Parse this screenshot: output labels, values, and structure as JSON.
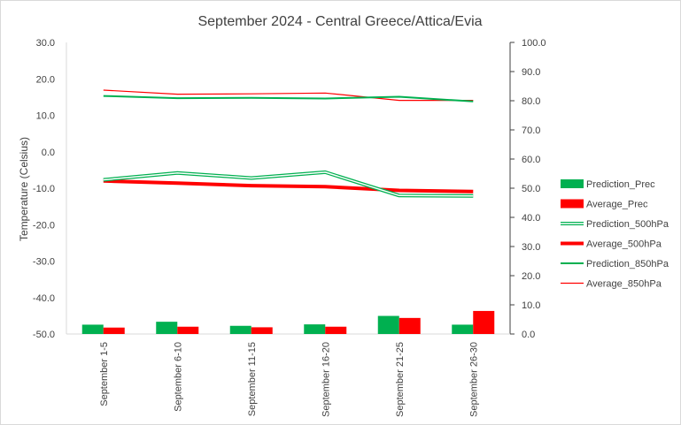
{
  "chart_data": {
    "type": "line",
    "title": "September 2024 - Central Greece/Attica/Evia",
    "ylabel": "Temperature  (Celsius)",
    "y2label": "",
    "categories": [
      "September 1-5",
      "September 6-10",
      "September 11-15",
      "September 16-20",
      "September 21-25",
      "September 26-30"
    ],
    "ylim": [
      -50,
      30
    ],
    "y2lim": [
      0,
      100
    ],
    "y_ticks": [
      "30.0",
      "20.0",
      "10.0",
      "0.0",
      "-10.0",
      "-20.0",
      "-30.0",
      "-40.0",
      "-50.0"
    ],
    "y2_ticks": [
      "100.0",
      "90.0",
      "80.0",
      "70.0",
      "60.0",
      "50.0",
      "40.0",
      "30.0",
      "20.0",
      "10.0",
      "0.0"
    ],
    "grid": false,
    "legend_position": "right",
    "series": [
      {
        "name": "Prediction_Prec",
        "kind": "bar",
        "axis": "right",
        "color": "#00b050",
        "values": [
          3.2,
          4.2,
          2.8,
          3.3,
          6.2,
          3.2
        ]
      },
      {
        "name": "Average_Prec",
        "kind": "bar",
        "axis": "right",
        "color": "#ff0000",
        "values": [
          2.2,
          2.5,
          2.3,
          2.5,
          5.5,
          7.9
        ]
      },
      {
        "name": "Prediction_500hPa",
        "kind": "line",
        "style": "double",
        "axis": "left",
        "color": "#00b050",
        "values": [
          -7.7,
          -5.8,
          -7.2,
          -5.6,
          -12.0,
          -12.1
        ]
      },
      {
        "name": "Average_500hPa",
        "kind": "line",
        "style": "thick",
        "axis": "left",
        "color": "#ff0000",
        "values": [
          -8.0,
          -8.6,
          -9.3,
          -9.6,
          -10.6,
          -10.9
        ]
      },
      {
        "name": "Prediction_850hPa",
        "kind": "line",
        "style": "medium",
        "axis": "left",
        "color": "#00b050",
        "values": [
          15.3,
          14.7,
          14.8,
          14.6,
          15.1,
          13.8
        ]
      },
      {
        "name": "Average_850hPa",
        "kind": "line",
        "style": "thin",
        "axis": "left",
        "color": "#ff0000",
        "values": [
          16.9,
          15.8,
          15.9,
          16.1,
          14.1,
          14.1
        ]
      }
    ]
  }
}
